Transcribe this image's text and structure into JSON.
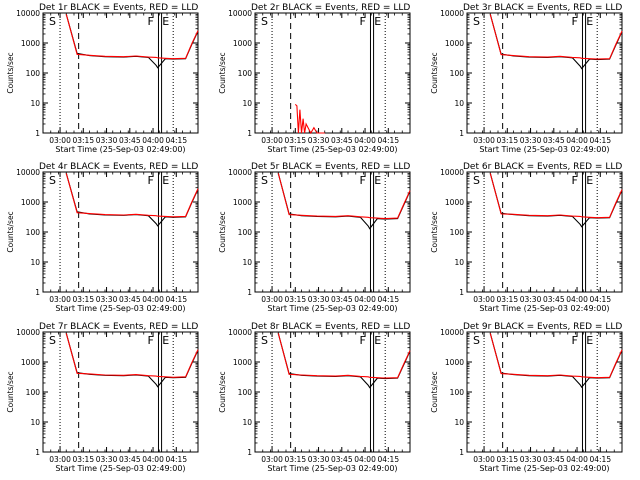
{
  "chart_data": [
    {
      "type": "line",
      "title": "Det 1r BLACK = Events, RED = LLD",
      "xlabel": "Start Time (25-Sep-03 02:49:00)",
      "ylabel": "Counts/sec",
      "x_ticks": [
        "03:00",
        "03:15",
        "03:30",
        "03:45",
        "04:00",
        "04:15"
      ],
      "y_ticks": [
        "1",
        "10",
        "100",
        "1000",
        "10000"
      ],
      "xlim_min": [
        0,
        100
      ],
      "ylim": [
        1,
        10000
      ],
      "yscale": "log",
      "time_min": [
        0,
        7,
        15,
        22,
        30,
        40,
        52,
        60,
        68,
        73,
        74,
        79,
        84,
        92,
        96,
        100
      ],
      "series": [
        {
          "name": "Events",
          "color": "#000000",
          "values": [
            null,
            null,
            9000,
            450,
            380,
            350,
            340,
            360,
            330,
            180,
            150,
            300,
            290,
            300,
            900,
            2500
          ]
        },
        {
          "name": "LLD",
          "color": "#ff0000",
          "values": [
            null,
            null,
            9000,
            420,
            390,
            360,
            350,
            370,
            340,
            330,
            320,
            310,
            300,
            310,
            950,
            2600
          ]
        }
      ],
      "markers": [
        {
          "min": 11,
          "style": "dotted",
          "label": "S"
        },
        {
          "min": 23,
          "style": "dashed",
          "label": ""
        },
        {
          "min": 74.5,
          "style": "solid",
          "label": "F"
        },
        {
          "min": 76.5,
          "style": "solid",
          "label": ""
        },
        {
          "min": 84,
          "style": "dotted",
          "label": "E"
        }
      ]
    },
    {
      "type": "line",
      "title": "Det 2r BLACK = Events, RED = LLD",
      "xlabel": "Start Time (25-Sep-03 02:49:00)",
      "ylabel": "Counts/sec",
      "x_ticks": [
        "03:00",
        "03:15",
        "03:30",
        "03:45",
        "04:00",
        "04:15"
      ],
      "y_ticks": [
        "1",
        "10",
        "100",
        "1000",
        "10000"
      ],
      "xlim_min": [
        0,
        100
      ],
      "ylim": [
        1,
        10000
      ],
      "yscale": "log",
      "time_min": [
        26,
        27,
        28,
        29,
        30,
        31,
        32,
        33,
        36,
        38,
        40,
        45
      ],
      "series": [
        {
          "name": "Events",
          "color": "#000000",
          "values": []
        },
        {
          "name": "LLD",
          "color": "#ff0000",
          "values": [
            9,
            8,
            1,
            6,
            1,
            3,
            1,
            2,
            1,
            1.5,
            1,
            1
          ]
        }
      ],
      "markers": [
        {
          "min": 11,
          "style": "dotted",
          "label": "S"
        },
        {
          "min": 23,
          "style": "dashed",
          "label": ""
        },
        {
          "min": 74.5,
          "style": "solid",
          "label": "F"
        },
        {
          "min": 76.5,
          "style": "solid",
          "label": ""
        },
        {
          "min": 84,
          "style": "dotted",
          "label": "E"
        }
      ]
    },
    {
      "type": "line",
      "title": "Det 3r BLACK = Events, RED = LLD",
      "xlabel": "Start Time (25-Sep-03 02:49:00)",
      "ylabel": "Counts/sec",
      "x_ticks": [
        "03:00",
        "03:15",
        "03:30",
        "03:45",
        "04:00",
        "04:15"
      ],
      "y_ticks": [
        "1",
        "10",
        "100",
        "1000",
        "10000"
      ],
      "xlim_min": [
        0,
        100
      ],
      "ylim": [
        1,
        10000
      ],
      "yscale": "log",
      "time_min": [
        0,
        7,
        15,
        22,
        30,
        40,
        52,
        60,
        68,
        73,
        74,
        79,
        84,
        92,
        96,
        100
      ],
      "series": [
        {
          "name": "Events",
          "color": "#000000",
          "values": [
            null,
            null,
            9000,
            430,
            370,
            340,
            330,
            350,
            320,
            170,
            140,
            290,
            280,
            290,
            850,
            2400
          ]
        },
        {
          "name": "LLD",
          "color": "#ff0000",
          "values": [
            null,
            null,
            9000,
            410,
            380,
            350,
            340,
            360,
            330,
            320,
            310,
            300,
            290,
            300,
            900,
            2500
          ]
        }
      ],
      "markers": [
        {
          "min": 11,
          "style": "dotted",
          "label": "S"
        },
        {
          "min": 23,
          "style": "dashed",
          "label": ""
        },
        {
          "min": 74.5,
          "style": "solid",
          "label": "F"
        },
        {
          "min": 76.5,
          "style": "solid",
          "label": ""
        },
        {
          "min": 84,
          "style": "dotted",
          "label": "E"
        }
      ]
    },
    {
      "type": "line",
      "title": "Det 4r BLACK = Events, RED = LLD",
      "xlabel": "Start Time (25-Sep-03 02:49:00)",
      "ylabel": "Counts/sec",
      "x_ticks": [
        "03:00",
        "03:15",
        "03:30",
        "03:45",
        "04:00",
        "04:15"
      ],
      "y_ticks": [
        "1",
        "10",
        "100",
        "1000",
        "10000"
      ],
      "xlim_min": [
        0,
        100
      ],
      "ylim": [
        1,
        10000
      ],
      "yscale": "log",
      "time_min": [
        0,
        7,
        15,
        22,
        30,
        40,
        52,
        60,
        68,
        73,
        74,
        79,
        84,
        92,
        96,
        100
      ],
      "series": [
        {
          "name": "Events",
          "color": "#000000",
          "values": [
            null,
            null,
            9000,
            470,
            400,
            370,
            360,
            380,
            350,
            190,
            160,
            320,
            310,
            320,
            950,
            2700
          ]
        },
        {
          "name": "LLD",
          "color": "#ff0000",
          "values": [
            null,
            null,
            9000,
            440,
            410,
            380,
            370,
            390,
            360,
            350,
            340,
            330,
            320,
            330,
            1000,
            2800
          ]
        }
      ],
      "markers": [
        {
          "min": 11,
          "style": "dotted",
          "label": "S"
        },
        {
          "min": 23,
          "style": "dashed",
          "label": ""
        },
        {
          "min": 74.5,
          "style": "solid",
          "label": "F"
        },
        {
          "min": 76.5,
          "style": "solid",
          "label": ""
        },
        {
          "min": 84,
          "style": "dotted",
          "label": "E"
        }
      ]
    },
    {
      "type": "line",
      "title": "Det 5r BLACK = Events, RED = LLD",
      "xlabel": "Start Time (25-Sep-03 02:49:00)",
      "ylabel": "Counts/sec",
      "x_ticks": [
        "03:00",
        "03:15",
        "03:30",
        "03:45",
        "04:00",
        "04:15"
      ],
      "y_ticks": [
        "1",
        "10",
        "100",
        "1000",
        "10000"
      ],
      "xlim_min": [
        0,
        100
      ],
      "ylim": [
        1,
        10000
      ],
      "yscale": "log",
      "time_min": [
        0,
        7,
        15,
        22,
        30,
        40,
        52,
        60,
        68,
        73,
        74,
        79,
        84,
        92,
        96,
        100
      ],
      "series": [
        {
          "name": "Events",
          "color": "#000000",
          "values": [
            null,
            null,
            9000,
            400,
            350,
            330,
            320,
            340,
            310,
            160,
            130,
            280,
            270,
            280,
            800,
            2300
          ]
        },
        {
          "name": "LLD",
          "color": "#ff0000",
          "values": [
            null,
            null,
            9000,
            380,
            360,
            340,
            330,
            350,
            320,
            310,
            300,
            290,
            280,
            290,
            850,
            2400
          ]
        }
      ],
      "markers": [
        {
          "min": 11,
          "style": "dotted",
          "label": "S"
        },
        {
          "min": 23,
          "style": "dashed",
          "label": ""
        },
        {
          "min": 74.5,
          "style": "solid",
          "label": "F"
        },
        {
          "min": 76.5,
          "style": "solid",
          "label": ""
        },
        {
          "min": 84,
          "style": "dotted",
          "label": "E"
        }
      ]
    },
    {
      "type": "line",
      "title": "Det 6r BLACK = Events, RED = LLD",
      "xlabel": "Start Time (25-Sep-03 02:49:00)",
      "ylabel": "Counts/sec",
      "x_ticks": [
        "03:00",
        "03:15",
        "03:30",
        "03:45",
        "04:00",
        "04:15"
      ],
      "y_ticks": [
        "1",
        "10",
        "100",
        "1000",
        "10000"
      ],
      "xlim_min": [
        0,
        100
      ],
      "ylim": [
        1,
        10000
      ],
      "yscale": "log",
      "time_min": [
        0,
        7,
        15,
        22,
        30,
        40,
        52,
        60,
        68,
        73,
        74,
        79,
        84,
        92,
        96,
        100
      ],
      "series": [
        {
          "name": "Events",
          "color": "#000000",
          "values": [
            null,
            null,
            9000,
            420,
            380,
            350,
            340,
            360,
            330,
            180,
            150,
            300,
            290,
            300,
            880,
            2500
          ]
        },
        {
          "name": "LLD",
          "color": "#ff0000",
          "values": [
            null,
            null,
            9000,
            400,
            390,
            360,
            350,
            370,
            340,
            330,
            320,
            310,
            300,
            310,
            930,
            2600
          ]
        }
      ],
      "markers": [
        {
          "min": 11,
          "style": "dotted",
          "label": "S"
        },
        {
          "min": 23,
          "style": "dashed",
          "label": ""
        },
        {
          "min": 74.5,
          "style": "solid",
          "label": "F"
        },
        {
          "min": 76.5,
          "style": "solid",
          "label": ""
        },
        {
          "min": 84,
          "style": "dotted",
          "label": "E"
        }
      ]
    },
    {
      "type": "line",
      "title": "Det 7r BLACK = Events, RED = LLD",
      "xlabel": "Start Time (25-Sep-03 02:49:00)",
      "ylabel": "Counts/sec",
      "x_ticks": [
        "03:00",
        "03:15",
        "03:30",
        "03:45",
        "04:00",
        "04:15"
      ],
      "y_ticks": [
        "1",
        "10",
        "100",
        "1000",
        "10000"
      ],
      "xlim_min": [
        0,
        100
      ],
      "ylim": [
        1,
        10000
      ],
      "yscale": "log",
      "time_min": [
        0,
        7,
        15,
        22,
        30,
        40,
        52,
        60,
        68,
        73,
        74,
        79,
        84,
        92,
        96,
        100
      ],
      "series": [
        {
          "name": "Events",
          "color": "#000000",
          "values": [
            null,
            null,
            9000,
            440,
            390,
            360,
            350,
            370,
            340,
            180,
            150,
            310,
            300,
            310,
            900,
            2500
          ]
        },
        {
          "name": "LLD",
          "color": "#ff0000",
          "values": [
            null,
            null,
            9000,
            420,
            400,
            370,
            360,
            380,
            350,
            340,
            330,
            320,
            310,
            320,
            950,
            2600
          ]
        }
      ],
      "markers": [
        {
          "min": 11,
          "style": "dotted",
          "label": "S"
        },
        {
          "min": 23,
          "style": "dashed",
          "label": ""
        },
        {
          "min": 74.5,
          "style": "solid",
          "label": "F"
        },
        {
          "min": 76.5,
          "style": "solid",
          "label": ""
        },
        {
          "min": 84,
          "style": "dotted",
          "label": "E"
        }
      ]
    },
    {
      "type": "line",
      "title": "Det 8r BLACK = Events, RED = LLD",
      "xlabel": "Start Time (25-Sep-03 02:49:00)",
      "ylabel": "Counts/sec",
      "x_ticks": [
        "03:00",
        "03:15",
        "03:30",
        "03:45",
        "04:00",
        "04:15"
      ],
      "y_ticks": [
        "1",
        "10",
        "100",
        "1000",
        "10000"
      ],
      "xlim_min": [
        0,
        100
      ],
      "ylim": [
        1,
        10000
      ],
      "yscale": "log",
      "time_min": [
        0,
        7,
        15,
        22,
        30,
        40,
        52,
        60,
        68,
        73,
        74,
        79,
        84,
        92,
        96,
        100
      ],
      "series": [
        {
          "name": "Events",
          "color": "#000000",
          "values": [
            null,
            null,
            9000,
            410,
            360,
            340,
            330,
            350,
            320,
            170,
            140,
            290,
            280,
            290,
            820,
            2300
          ]
        },
        {
          "name": "LLD",
          "color": "#ff0000",
          "values": [
            null,
            null,
            9000,
            390,
            370,
            350,
            340,
            360,
            330,
            320,
            310,
            300,
            290,
            300,
            870,
            2400
          ]
        }
      ],
      "markers": [
        {
          "min": 11,
          "style": "dotted",
          "label": "S"
        },
        {
          "min": 23,
          "style": "dashed",
          "label": ""
        },
        {
          "min": 74.5,
          "style": "solid",
          "label": "F"
        },
        {
          "min": 76.5,
          "style": "solid",
          "label": ""
        },
        {
          "min": 84,
          "style": "dotted",
          "label": "E"
        }
      ]
    },
    {
      "type": "line",
      "title": "Det 9r BLACK = Events, RED = LLD",
      "xlabel": "Start Time (25-Sep-03 02:49:00)",
      "ylabel": "Counts/sec",
      "x_ticks": [
        "03:00",
        "03:15",
        "03:30",
        "03:45",
        "04:00",
        "04:15"
      ],
      "y_ticks": [
        "1",
        "10",
        "100",
        "1000",
        "10000"
      ],
      "xlim_min": [
        0,
        100
      ],
      "ylim": [
        1,
        10000
      ],
      "yscale": "log",
      "time_min": [
        0,
        7,
        15,
        22,
        30,
        40,
        52,
        60,
        68,
        73,
        74,
        79,
        84,
        92,
        96,
        100
      ],
      "series": [
        {
          "name": "Events",
          "color": "#000000",
          "values": [
            null,
            null,
            9000,
            430,
            380,
            350,
            340,
            360,
            330,
            175,
            145,
            300,
            290,
            300,
            870,
            2450
          ]
        },
        {
          "name": "LLD",
          "color": "#ff0000",
          "values": [
            null,
            null,
            9000,
            410,
            390,
            360,
            350,
            370,
            340,
            330,
            320,
            310,
            300,
            310,
            920,
            2550
          ]
        }
      ],
      "markers": [
        {
          "min": 11,
          "style": "dotted",
          "label": "S"
        },
        {
          "min": 23,
          "style": "dashed",
          "label": ""
        },
        {
          "min": 74.5,
          "style": "solid",
          "label": "F"
        },
        {
          "min": 76.5,
          "style": "solid",
          "label": ""
        },
        {
          "min": 84,
          "style": "dotted",
          "label": "E"
        }
      ]
    }
  ]
}
